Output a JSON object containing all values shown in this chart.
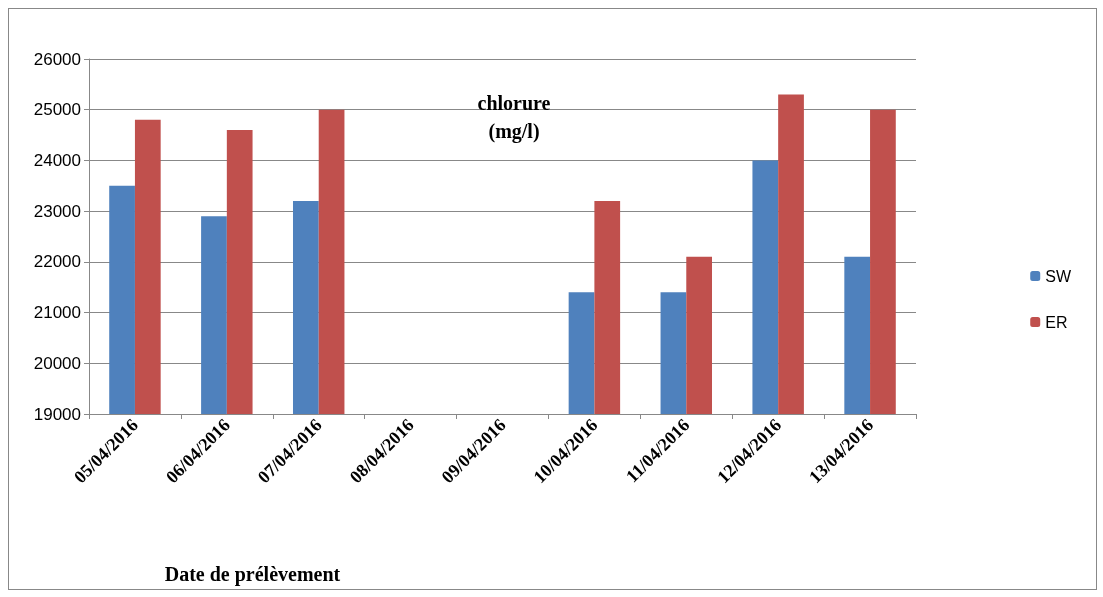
{
  "chart_data": {
    "type": "bar",
    "title": "chlorure\n(mg/l)",
    "xlabel": "Date de prélèvement",
    "categories": [
      "05/04/2016",
      "06/04/2016",
      "07/04/2016",
      "08/04/2016",
      "09/04/2016",
      "10/04/2016",
      "11/04/2016",
      "12/04/2016",
      "13/04/2016"
    ],
    "series": [
      {
        "name": "SW",
        "color": "#4f81bd",
        "values": [
          23500,
          22900,
          23200,
          null,
          null,
          21400,
          21400,
          24000,
          22100
        ]
      },
      {
        "name": "ER",
        "color": "#c0504d",
        "values": [
          24800,
          24600,
          25000,
          null,
          null,
          23200,
          22100,
          25300,
          25000
        ]
      }
    ],
    "ylim": [
      19000,
      26000
    ],
    "yticks": [
      19000,
      20000,
      21000,
      22000,
      23000,
      24000,
      25000,
      26000
    ],
    "grid": "y",
    "legend": "right"
  }
}
